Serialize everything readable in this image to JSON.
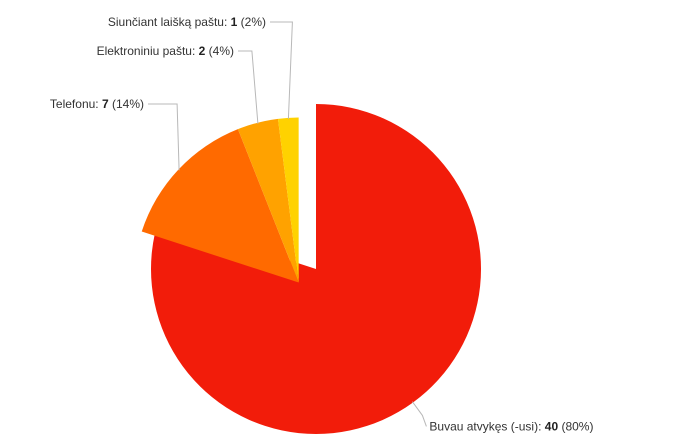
{
  "chart_data": {
    "type": "pie",
    "slices": [
      {
        "label": "Buvau atvykęs (-usi)",
        "value": 40,
        "percent": "80%",
        "color": "#f21c0a"
      },
      {
        "label": "Telefonu",
        "value": 7,
        "percent": "14%",
        "color": "#ff6a00"
      },
      {
        "label": "Elektroniniu paštu",
        "value": 2,
        "percent": "4%",
        "color": "#ffa200"
      },
      {
        "label": "Siunčiant laišką paštu",
        "value": 1,
        "percent": "2%",
        "color": "#ffd200"
      }
    ],
    "exploded": [
      "Telefonu",
      "Elektroniniu paštu",
      "Siunčiant laišką paštu"
    ],
    "legend": "none",
    "label_style": "outside labels with leader lines"
  }
}
